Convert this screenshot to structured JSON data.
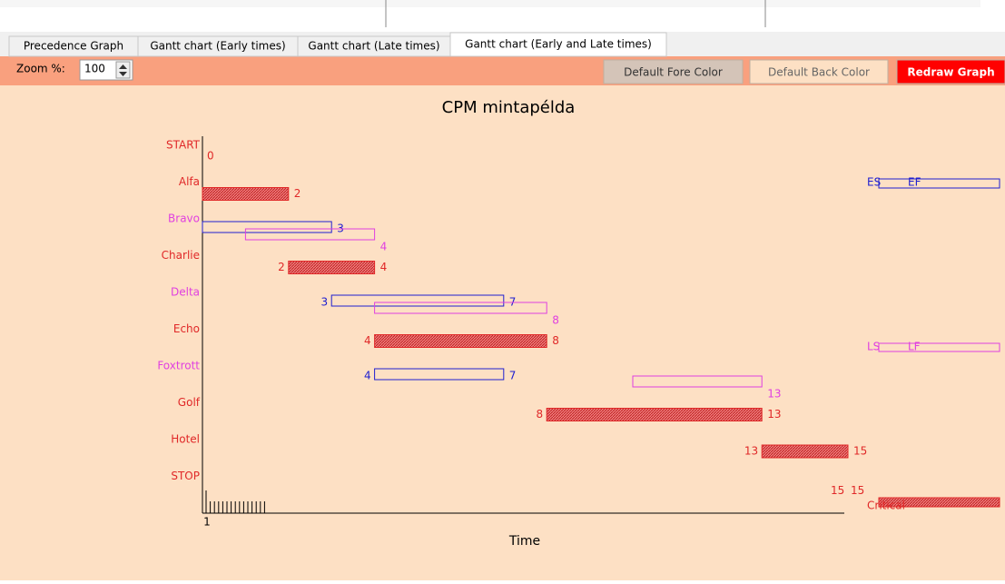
{
  "tabs": [
    "Precedence Graph",
    "Gantt chart (Early times)",
    "Gantt chart (Late times)",
    "Gantt chart (Early and Late times)"
  ],
  "active_tab": 3,
  "toolbar": {
    "zoom_label": "Zoom %:",
    "zoom_value": 100,
    "buttons": [
      "Default Fore Color",
      "Default Back Color",
      "Redraw Graph"
    ]
  },
  "chart": {
    "title": "CPM mintapélda",
    "x_label": "Time",
    "x_tick_label": "1",
    "colors": {
      "early": "#2020d0",
      "late": "#e040e0",
      "critical": "#e02828"
    },
    "activities": [
      {
        "name": "START",
        "critical": true,
        "milestone": [
          0
        ]
      },
      {
        "name": "Alfa",
        "critical": true,
        "times": [
          0,
          2
        ]
      },
      {
        "name": "Bravo",
        "critical": false,
        "early": [
          0,
          3
        ],
        "late": [
          1,
          4
        ]
      },
      {
        "name": "Charlie",
        "critical": true,
        "times": [
          2,
          4
        ]
      },
      {
        "name": "Delta",
        "critical": false,
        "early": [
          3,
          7
        ],
        "late": [
          4,
          8
        ]
      },
      {
        "name": "Echo",
        "critical": true,
        "times": [
          4,
          8
        ]
      },
      {
        "name": "Foxtrott",
        "critical": false,
        "early": [
          4,
          7
        ],
        "late": [
          10,
          13
        ]
      },
      {
        "name": "Golf",
        "critical": true,
        "times": [
          8,
          13
        ]
      },
      {
        "name": "Hotel",
        "critical": true,
        "times": [
          13,
          15
        ]
      },
      {
        "name": "STOP",
        "critical": true,
        "milestone": [
          15,
          15
        ]
      }
    ],
    "legend": {
      "early": [
        "ES",
        "EF"
      ],
      "late": [
        "LS",
        "LF"
      ],
      "critical": "Critical"
    }
  }
}
